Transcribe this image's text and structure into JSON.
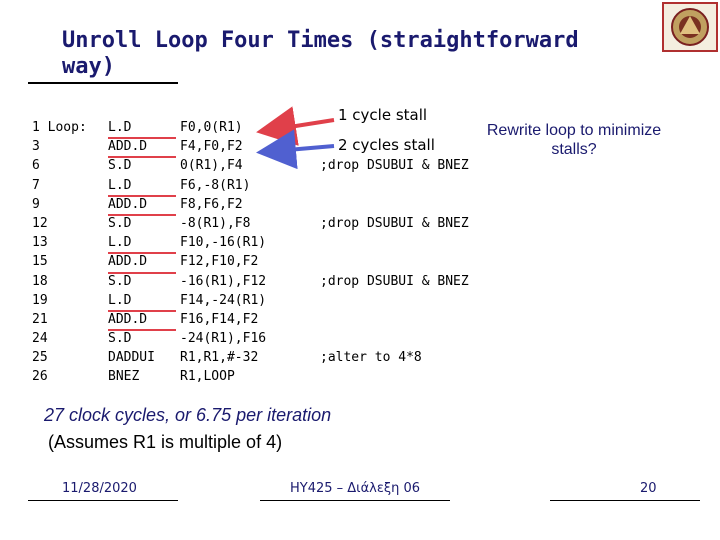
{
  "slide": {
    "title": "Unroll Loop Four Times (straightforward way)",
    "stall_1": "1 cycle stall",
    "stall_2": "2 cycles stall",
    "rewrite_note": "Rewrite loop to minimize stalls?",
    "summary_line_1": "27 clock cycles, or 6.75 per iteration",
    "summary_line_2": "(Assumes R1 is multiple of 4)"
  },
  "code_rows": [
    {
      "num": "1 Loop:",
      "op": "L.D",
      "args": "F0,0(R1)",
      "comment": ""
    },
    {
      "num": "3",
      "op": "ADD.D",
      "args": "F4,F0,F2",
      "comment": ""
    },
    {
      "num": "6",
      "op": "S.D",
      "args": "0(R1),F4",
      "comment": ";drop DSUBUI & BNEZ"
    },
    {
      "num": "7",
      "op": "L.D",
      "args": "F6,-8(R1)",
      "comment": ""
    },
    {
      "num": "9",
      "op": "ADD.D",
      "args": "F8,F6,F2",
      "comment": ""
    },
    {
      "num": "12",
      "op": "S.D",
      "args": "-8(R1),F8",
      "comment": ";drop DSUBUI & BNEZ"
    },
    {
      "num": "13",
      "op": "L.D",
      "args": "F10,-16(R1)",
      "comment": ""
    },
    {
      "num": "15",
      "op": "ADD.D",
      "args": "F12,F10,F2",
      "comment": ""
    },
    {
      "num": "18",
      "op": "S.D",
      "args": "-16(R1),F12",
      "comment": ";drop DSUBUI & BNEZ"
    },
    {
      "num": "19",
      "op": "L.D",
      "args": "F14,-24(R1)",
      "comment": ""
    },
    {
      "num": "21",
      "op": "ADD.D",
      "args": "F16,F14,F2",
      "comment": ""
    },
    {
      "num": "24",
      "op": "S.D",
      "args": "-24(R1),F16",
      "comment": ""
    },
    {
      "num": "25",
      "op": "DADDUI",
      "args": "R1,R1,#-32",
      "comment": ";alter to 4*8"
    },
    {
      "num": "26",
      "op": "BNEZ",
      "args": "R1,LOOP",
      "comment": ""
    }
  ],
  "footer": {
    "date": "11/28/2020",
    "course": "HY425 – Διάλεξη 06",
    "page": "20"
  },
  "colors": {
    "title": "#1a1a6e",
    "underline": "#e0404a",
    "arrow_red": "#e0404a",
    "arrow_blue": "#5060d0"
  },
  "icons": [
    "university-seal-icon"
  ]
}
